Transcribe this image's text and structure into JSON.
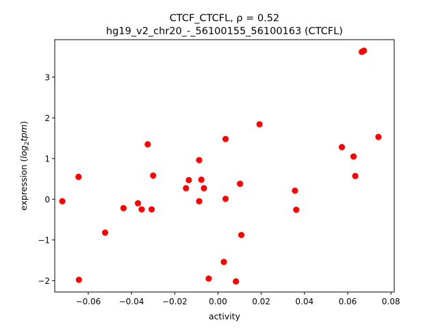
{
  "chart_data": {
    "type": "scatter",
    "title_line1": "CTCF_CTCFL, ρ = 0.52",
    "title_line2": "hg19_v2_chr20_-_56100155_56100163 (CTCFL)",
    "xlabel": "activity",
    "ylabel_prefix": "expression (",
    "ylabel_italic": "log",
    "ylabel_sub": "2",
    "ylabel_italic2": "tpm",
    "ylabel_suffix": ")",
    "xlim": [
      -0.0755,
      0.0815
    ],
    "ylim": [
      -2.28,
      3.92
    ],
    "xticks": [
      -0.06,
      -0.04,
      -0.02,
      0.0,
      0.02,
      0.04,
      0.06,
      0.08
    ],
    "xtick_labels": [
      "−0.06",
      "−0.04",
      "−0.02",
      "0.00",
      "0.02",
      "0.04",
      "0.06",
      "0.08"
    ],
    "yticks": [
      -2,
      -1,
      0,
      1,
      2,
      3
    ],
    "ytick_labels": [
      "−2",
      "−1",
      "0",
      "1",
      "2",
      "3"
    ],
    "marker_color": "#ff0000",
    "grid": false,
    "points": [
      {
        "x": -0.072,
        "y": -0.05
      },
      {
        "x": -0.0645,
        "y": 0.55
      },
      {
        "x": -0.0643,
        "y": -1.98
      },
      {
        "x": -0.0522,
        "y": -0.82
      },
      {
        "x": -0.0437,
        "y": -0.22
      },
      {
        "x": -0.037,
        "y": -0.1
      },
      {
        "x": -0.0353,
        "y": -0.25
      },
      {
        "x": -0.0325,
        "y": 1.35
      },
      {
        "x": -0.0307,
        "y": -0.25
      },
      {
        "x": -0.03,
        "y": 0.58
      },
      {
        "x": -0.0148,
        "y": 0.27
      },
      {
        "x": -0.0135,
        "y": 0.47
      },
      {
        "x": -0.0087,
        "y": 0.96
      },
      {
        "x": -0.0087,
        "y": -0.05
      },
      {
        "x": -0.0077,
        "y": 0.48
      },
      {
        "x": -0.0065,
        "y": 0.27
      },
      {
        "x": -0.0043,
        "y": -1.95
      },
      {
        "x": 0.0027,
        "y": -1.54
      },
      {
        "x": 0.0035,
        "y": 1.48
      },
      {
        "x": 0.0035,
        "y": 0.01
      },
      {
        "x": 0.0083,
        "y": -2.02
      },
      {
        "x": 0.0102,
        "y": 0.38
      },
      {
        "x": 0.0108,
        "y": -0.88
      },
      {
        "x": 0.0192,
        "y": 1.84
      },
      {
        "x": 0.0356,
        "y": 0.21
      },
      {
        "x": 0.0362,
        "y": -0.26
      },
      {
        "x": 0.0573,
        "y": 1.28
      },
      {
        "x": 0.0627,
        "y": 1.05
      },
      {
        "x": 0.0635,
        "y": 0.57
      },
      {
        "x": 0.0665,
        "y": 3.62
      },
      {
        "x": 0.0675,
        "y": 3.65
      },
      {
        "x": 0.0742,
        "y": 1.53
      }
    ]
  }
}
